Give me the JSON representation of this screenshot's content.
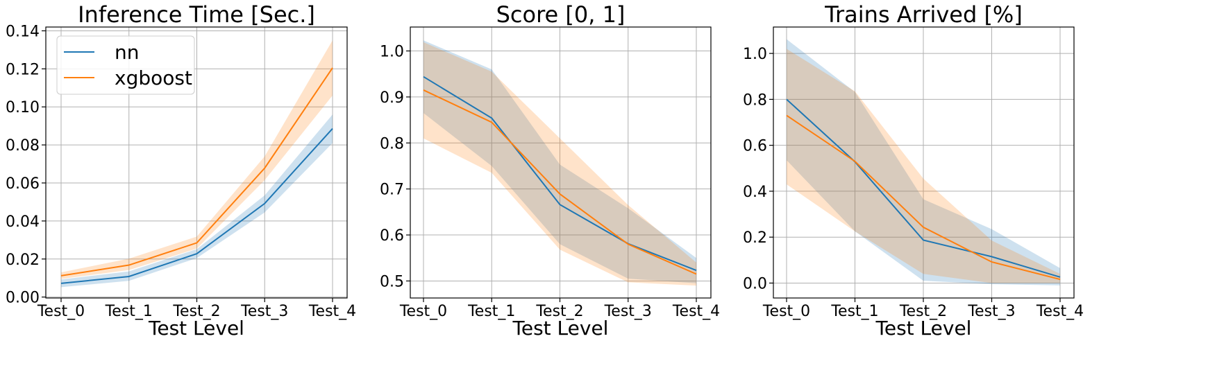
{
  "chart_data": [
    {
      "type": "line",
      "title": "Inference Time [Sec.]",
      "xlabel": "Test Level",
      "ylabel": "",
      "categories": [
        "Test_0",
        "Test_1",
        "Test_2",
        "Test_3",
        "Test_4"
      ],
      "ylim": [
        -0.0005,
        0.142
      ],
      "yticks": [
        "0.00",
        "0.02",
        "0.04",
        "0.06",
        "0.08",
        "0.10",
        "0.12",
        "0.14"
      ],
      "ytick_values": [
        0,
        0.02,
        0.04,
        0.06,
        0.08,
        0.1,
        0.12,
        0.14
      ],
      "grid": true,
      "legend": "upper-left",
      "series": [
        {
          "name": "nn",
          "color": "#1f77b4",
          "band_color": "#c4dcef",
          "values": [
            0.0072,
            0.0108,
            0.0228,
            0.0492,
            0.0886
          ],
          "lower": [
            0.0052,
            0.0085,
            0.0205,
            0.0445,
            0.081
          ],
          "upper": [
            0.0092,
            0.0135,
            0.0252,
            0.0535,
            0.096
          ]
        },
        {
          "name": "xgboost",
          "color": "#ff7f0e",
          "band_color": "#ffdcbf",
          "values": [
            0.0112,
            0.0168,
            0.0285,
            0.0678,
            0.1205
          ],
          "lower": [
            0.0095,
            0.0142,
            0.0255,
            0.0615,
            0.106
          ],
          "upper": [
            0.013,
            0.0202,
            0.0318,
            0.074,
            0.135
          ]
        }
      ]
    },
    {
      "type": "line",
      "title": "Score [0, 1]",
      "xlabel": "Test Level",
      "ylabel": "",
      "categories": [
        "Test_0",
        "Test_1",
        "Test_2",
        "Test_3",
        "Test_4"
      ],
      "ylim": [
        0.463,
        1.052
      ],
      "yticks": [
        "0.5",
        "0.6",
        "0.7",
        "0.8",
        "0.9",
        "1.0"
      ],
      "ytick_values": [
        0.5,
        0.6,
        0.7,
        0.8,
        0.9,
        1.0
      ],
      "grid": true,
      "legend": "none",
      "series": [
        {
          "name": "nn",
          "color": "#1f77b4",
          "band_color": "#c4dcef",
          "values": [
            0.944,
            0.854,
            0.666,
            0.581,
            0.523
          ],
          "lower": [
            0.865,
            0.75,
            0.58,
            0.505,
            0.495
          ],
          "upper": [
            1.023,
            0.96,
            0.753,
            0.658,
            0.55
          ]
        },
        {
          "name": "xgboost",
          "color": "#ff7f0e",
          "band_color": "#ffdcbf",
          "values": [
            0.915,
            0.845,
            0.689,
            0.58,
            0.515
          ],
          "lower": [
            0.81,
            0.735,
            0.568,
            0.497,
            0.49
          ],
          "upper": [
            1.019,
            0.955,
            0.81,
            0.665,
            0.54
          ]
        }
      ]
    },
    {
      "type": "line",
      "title": "Trains Arrived [%]",
      "xlabel": "Test Level",
      "ylabel": "",
      "categories": [
        "Test_0",
        "Test_1",
        "Test_2",
        "Test_3",
        "Test_4"
      ],
      "ylim": [
        -0.065,
        1.115
      ],
      "yticks": [
        "0.0",
        "0.2",
        "0.4",
        "0.6",
        "0.8",
        "1.0"
      ],
      "ytick_values": [
        0,
        0.2,
        0.4,
        0.6,
        0.8,
        1.0
      ],
      "grid": true,
      "legend": "none",
      "series": [
        {
          "name": "nn",
          "color": "#1f77b4",
          "band_color": "#c4dcef",
          "values": [
            0.8,
            0.528,
            0.187,
            0.115,
            0.026
          ],
          "lower": [
            0.535,
            0.225,
            0.01,
            -0.005,
            -0.01
          ],
          "upper": [
            1.062,
            0.832,
            0.365,
            0.235,
            0.065
          ]
        },
        {
          "name": "xgboost",
          "color": "#ff7f0e",
          "band_color": "#ffdcbf",
          "values": [
            0.73,
            0.53,
            0.243,
            0.092,
            0.016
          ],
          "lower": [
            0.43,
            0.225,
            0.04,
            0.0,
            0.0
          ],
          "upper": [
            1.02,
            0.835,
            0.455,
            0.185,
            0.04
          ]
        }
      ]
    }
  ]
}
